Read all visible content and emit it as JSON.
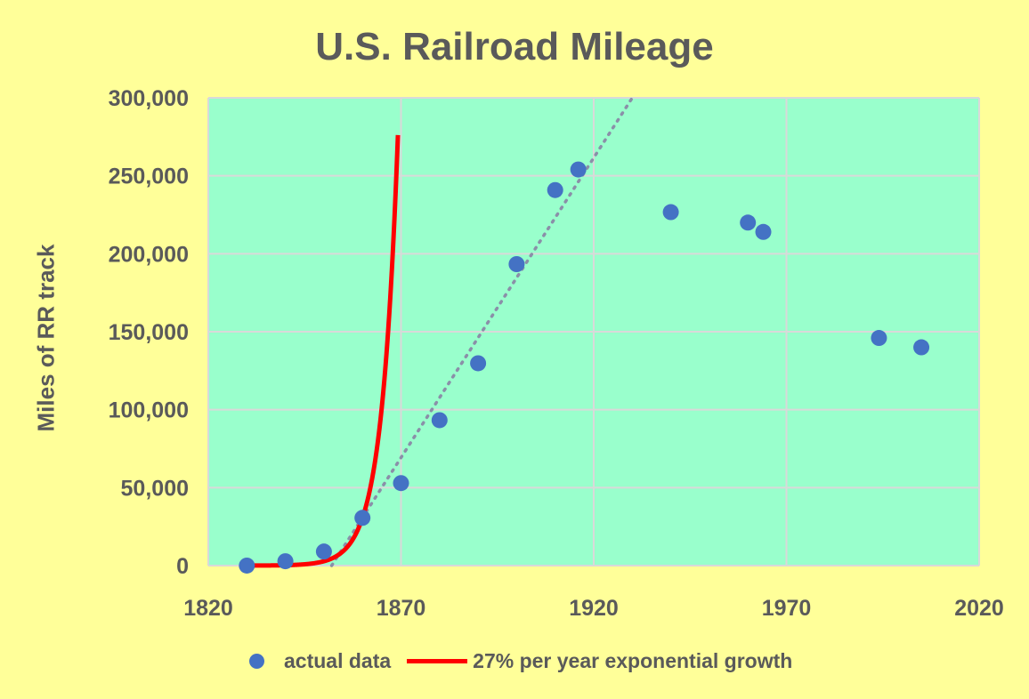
{
  "chart_data": {
    "type": "scatter",
    "title": "U.S. Railroad Mileage",
    "xlabel": "",
    "ylabel": "Miles of RR track",
    "xlim": [
      1820,
      2020
    ],
    "ylim": [
      0,
      300000
    ],
    "x_ticks": [
      "1820",
      "1870",
      "1920",
      "1970",
      "2020"
    ],
    "y_ticks": [
      "0",
      "50,000",
      "100,000",
      "150,000",
      "200,000",
      "250,000",
      "300,000"
    ],
    "grid": true,
    "legend_position": "bottom",
    "series": [
      {
        "name": "actual data",
        "type": "scatter",
        "color": "#4472c4",
        "points": [
          [
            1830,
            23
          ],
          [
            1840,
            2808
          ],
          [
            1850,
            9021
          ],
          [
            1860,
            30626
          ],
          [
            1870,
            52922
          ],
          [
            1880,
            93262
          ],
          [
            1890,
            129774
          ],
          [
            1900,
            193346
          ],
          [
            1910,
            240831
          ],
          [
            1916,
            254037
          ],
          [
            1940,
            226696
          ],
          [
            1960,
            220000
          ],
          [
            1964,
            214000
          ],
          [
            1994,
            146000
          ],
          [
            2005,
            140000
          ]
        ]
      },
      {
        "name": "27%  per year exponential growth",
        "type": "line",
        "color": "#ff0000",
        "growth_rate": 0.27,
        "x_range": [
          1830,
          1869.2
        ],
        "anchor": [
          1860,
          30626
        ]
      },
      {
        "name": "",
        "type": "trendline",
        "style": "dotted",
        "color": "#8a8fa8",
        "from": [
          1852,
          0
        ],
        "to": [
          1930,
          300000
        ]
      }
    ]
  }
}
